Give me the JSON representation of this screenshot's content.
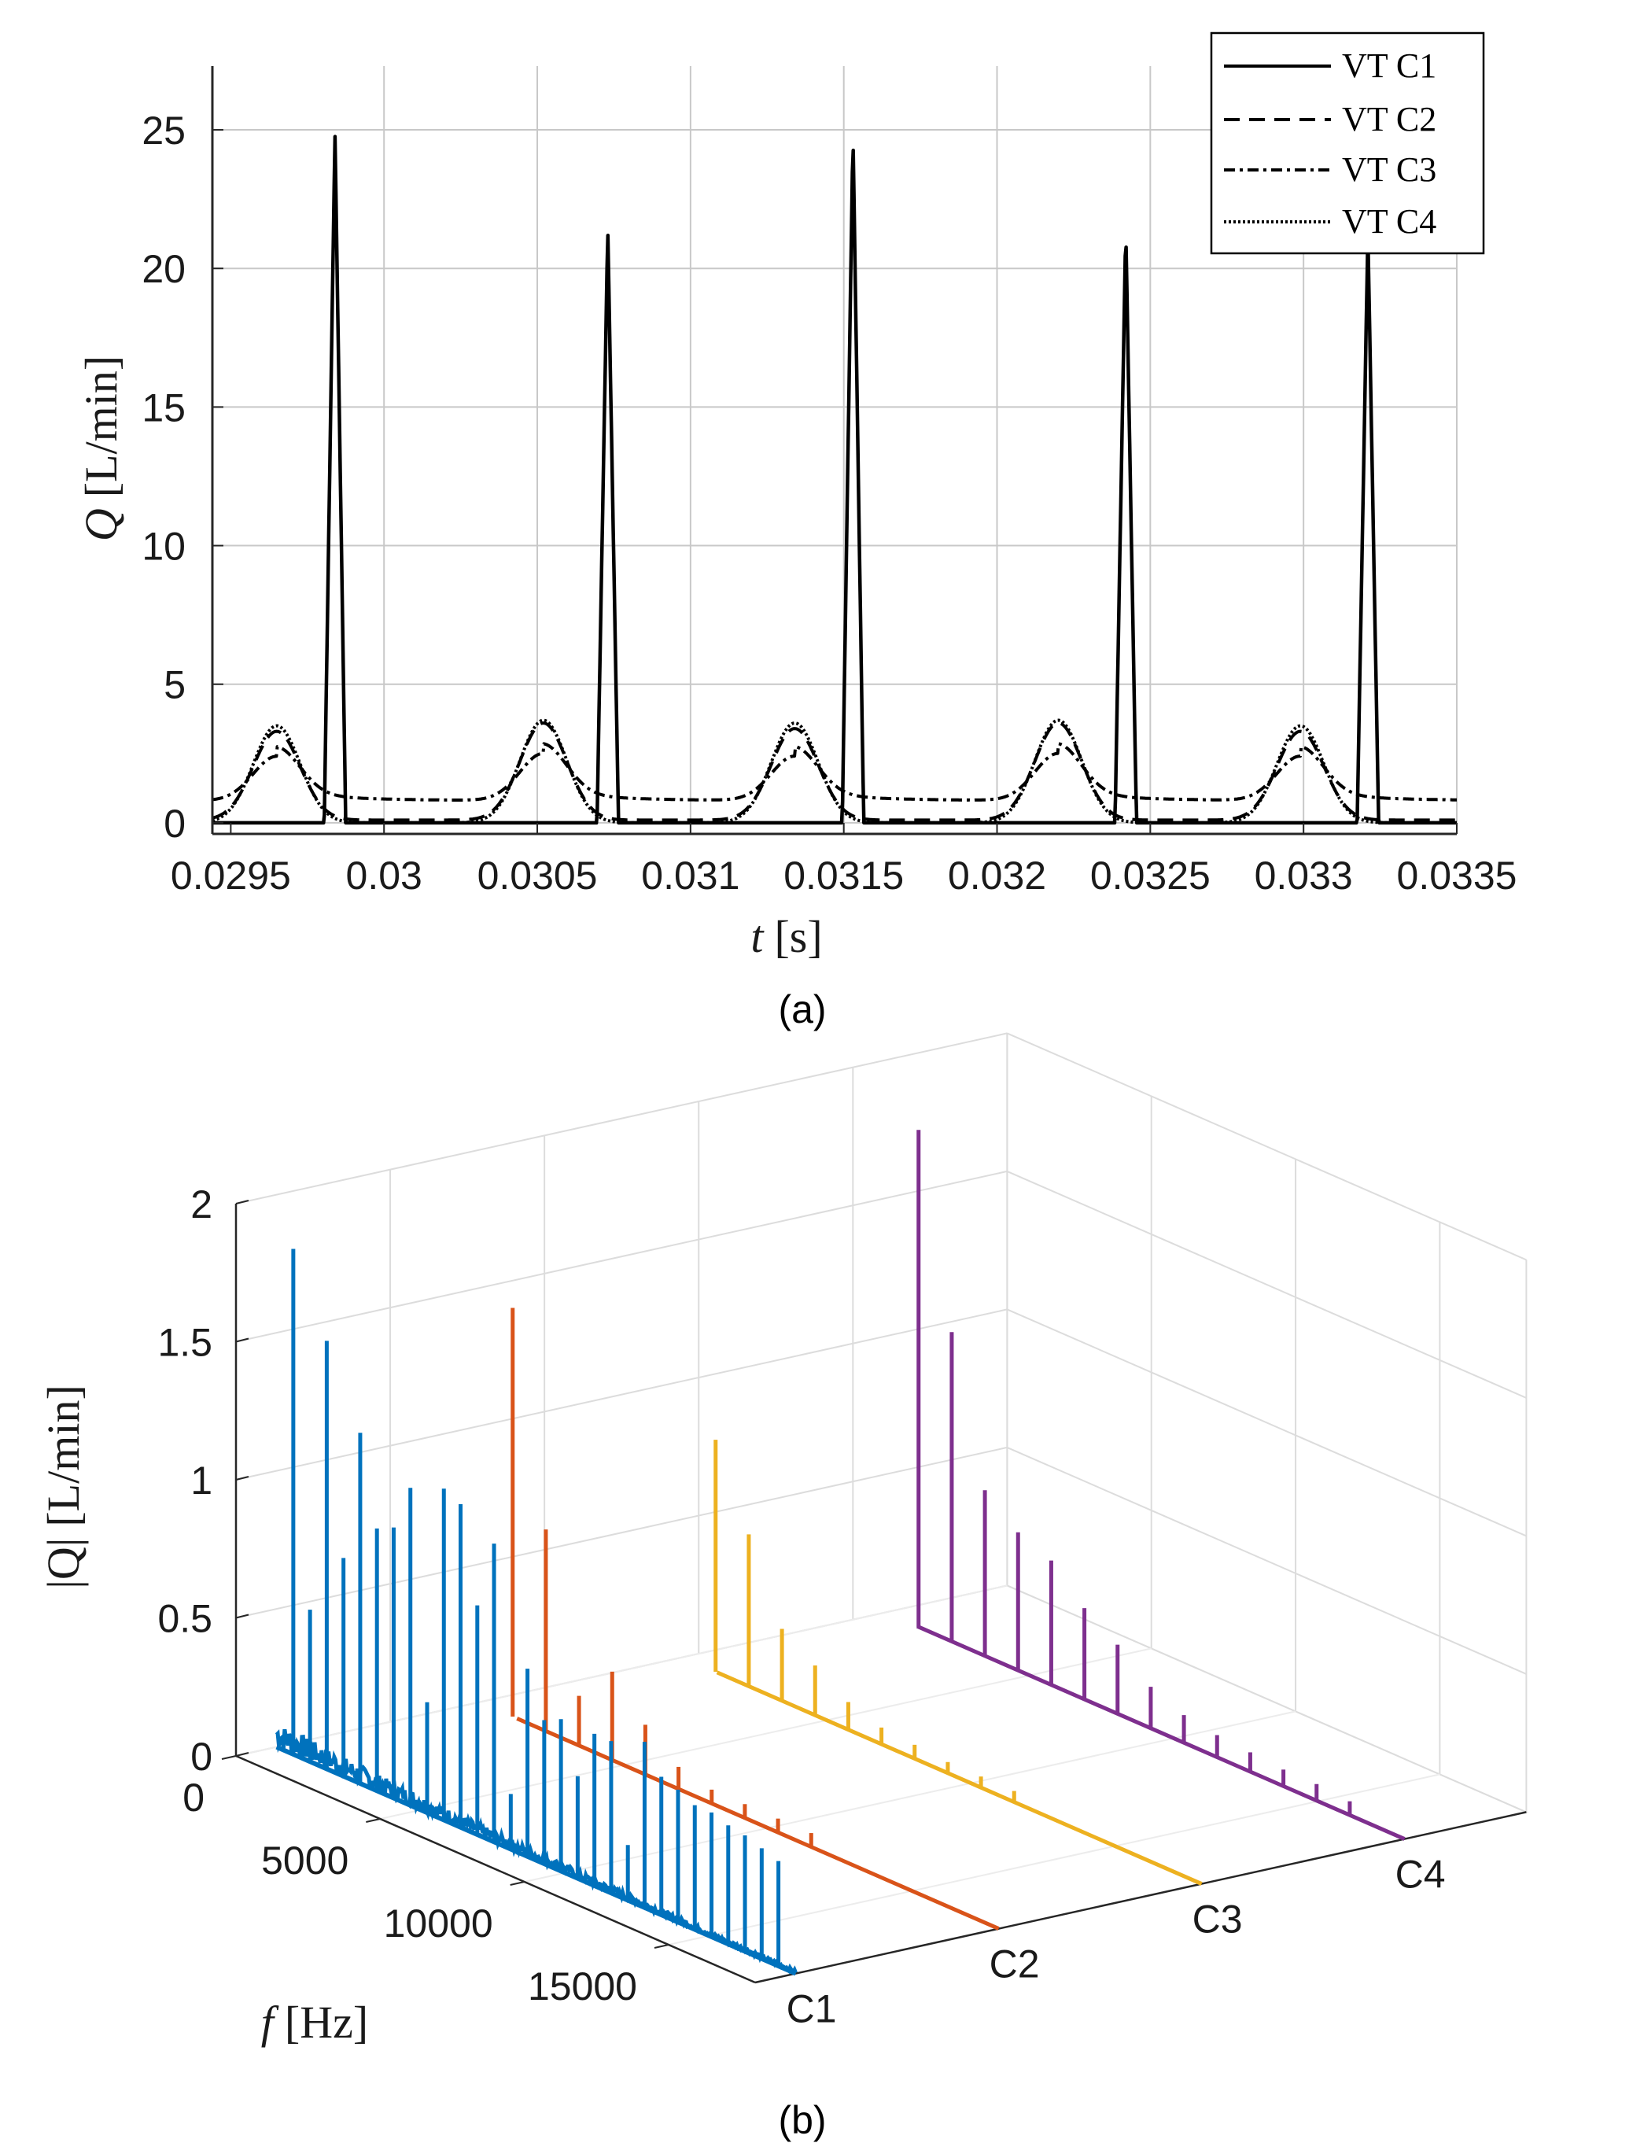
{
  "chart_data": [
    {
      "type": "line",
      "panel": "a",
      "caption": "(a)",
      "xlabel": "t [s]",
      "xlabel_var": "t",
      "xlabel_unit": "[s]",
      "ylabel": "Q [L/min]",
      "ylabel_var": "Q",
      "ylabel_unit": "[L/min]",
      "xlim": [
        0.02944,
        0.0335
      ],
      "ylim": [
        -0.4,
        27.3
      ],
      "grid": true,
      "legend_position": "top-right",
      "xticks": [
        0.0295,
        0.03,
        0.0305,
        0.031,
        0.0315,
        0.032,
        0.0325,
        0.033,
        0.0335
      ],
      "xtick_labels": [
        "0.0295",
        "0.03",
        "0.0305",
        "0.031",
        "0.0315",
        "0.032",
        "0.0325",
        "0.033",
        "0.0335"
      ],
      "yticks": [
        0,
        5,
        10,
        15,
        20,
        25
      ],
      "ytick_labels": [
        "0",
        "5",
        "10",
        "15",
        "20",
        "25"
      ],
      "series": [
        {
          "name": "VT C1",
          "style": "solid",
          "pulse_times": [
            0.02984,
            0.03073,
            0.03153,
            0.03242,
            0.03321
          ],
          "pulse_peaks": [
            24.9,
            21.5,
            24.9,
            21.5,
            21.3
          ],
          "baseline": 0.0
        },
        {
          "name": "VT C2",
          "style": "dashed",
          "bump_times": [
            0.02965,
            0.03052,
            0.03134,
            0.0322,
            0.03299
          ],
          "bump_peaks": [
            3.3,
            3.6,
            3.4,
            3.6,
            3.3
          ],
          "baseline": 0.1
        },
        {
          "name": "VT C3",
          "style": "dashdot",
          "bump_times": [
            0.02965,
            0.03052,
            0.03134,
            0.0322,
            0.03299
          ],
          "bump_peaks": [
            2.4,
            2.5,
            2.4,
            2.5,
            2.4
          ],
          "baseline": 0.8
        },
        {
          "name": "VT C4",
          "style": "dotted",
          "bump_times": [
            0.02965,
            0.03052,
            0.03134,
            0.0322,
            0.03299
          ],
          "bump_peaks": [
            3.5,
            3.7,
            3.6,
            3.7,
            3.5
          ],
          "baseline": 0.0
        }
      ]
    },
    {
      "type": "spectrum-3d",
      "panel": "b",
      "caption": "(b)",
      "xlabel": "f [Hz]",
      "xlabel_var": "f",
      "xlabel_unit": "[Hz]",
      "ylabel": "|Q| [L/min]",
      "ylabel_var": "|Q|",
      "ylabel_unit": "[L/min]",
      "zlim": [
        0,
        2
      ],
      "zticks": [
        0,
        0.5,
        1,
        1.5,
        2
      ],
      "ztick_labels": [
        "0",
        "0.5",
        "1",
        "1.5",
        "2"
      ],
      "fticks": [
        0,
        5000,
        10000,
        15000
      ],
      "ftick_labels": [
        "0",
        "5000",
        "10000",
        "15000"
      ],
      "fmax": 18000,
      "categories": [
        "C1",
        "C2",
        "C3",
        "C4"
      ],
      "series": [
        {
          "name": "C1",
          "color": "#0072BD",
          "fundamental_hz": 1000,
          "harmonic_amplitudes": [
            1.83,
            0.55,
            1.55,
            0.79,
            1.27,
            0.95,
            0.98,
            1.15,
            0.4,
            1.2,
            1.17,
            0.83,
            1.08,
            0.2,
            0.68,
            0.52,
            0.55,
            0.37,
            0.55,
            0.55,
            0.2,
            0.6,
            0.5,
            0.48,
            0.45,
            0.45,
            0.43,
            0.42,
            0.4,
            0.38
          ]
        },
        {
          "name": "C2",
          "color": "#D95319",
          "fundamental_hz": 1150,
          "harmonic_amplitudes": [
            1.48,
            0.73,
            0.18,
            0.32,
            0.18,
            0.08,
            0.05,
            0.05,
            0.05,
            0.05
          ]
        },
        {
          "name": "C3",
          "color": "#EDB120",
          "fundamental_hz": 1150,
          "harmonic_amplitudes": [
            0.84,
            0.55,
            0.26,
            0.18,
            0.1,
            0.06,
            0.05,
            0.04,
            0.04,
            0.04
          ]
        },
        {
          "name": "C4",
          "color": "#7E2F8E",
          "fundamental_hz": 1150,
          "harmonic_amplitudes": [
            1.8,
            1.12,
            0.6,
            0.5,
            0.45,
            0.33,
            0.25,
            0.15,
            0.1,
            0.08,
            0.07,
            0.06,
            0.06,
            0.05
          ]
        }
      ]
    }
  ]
}
